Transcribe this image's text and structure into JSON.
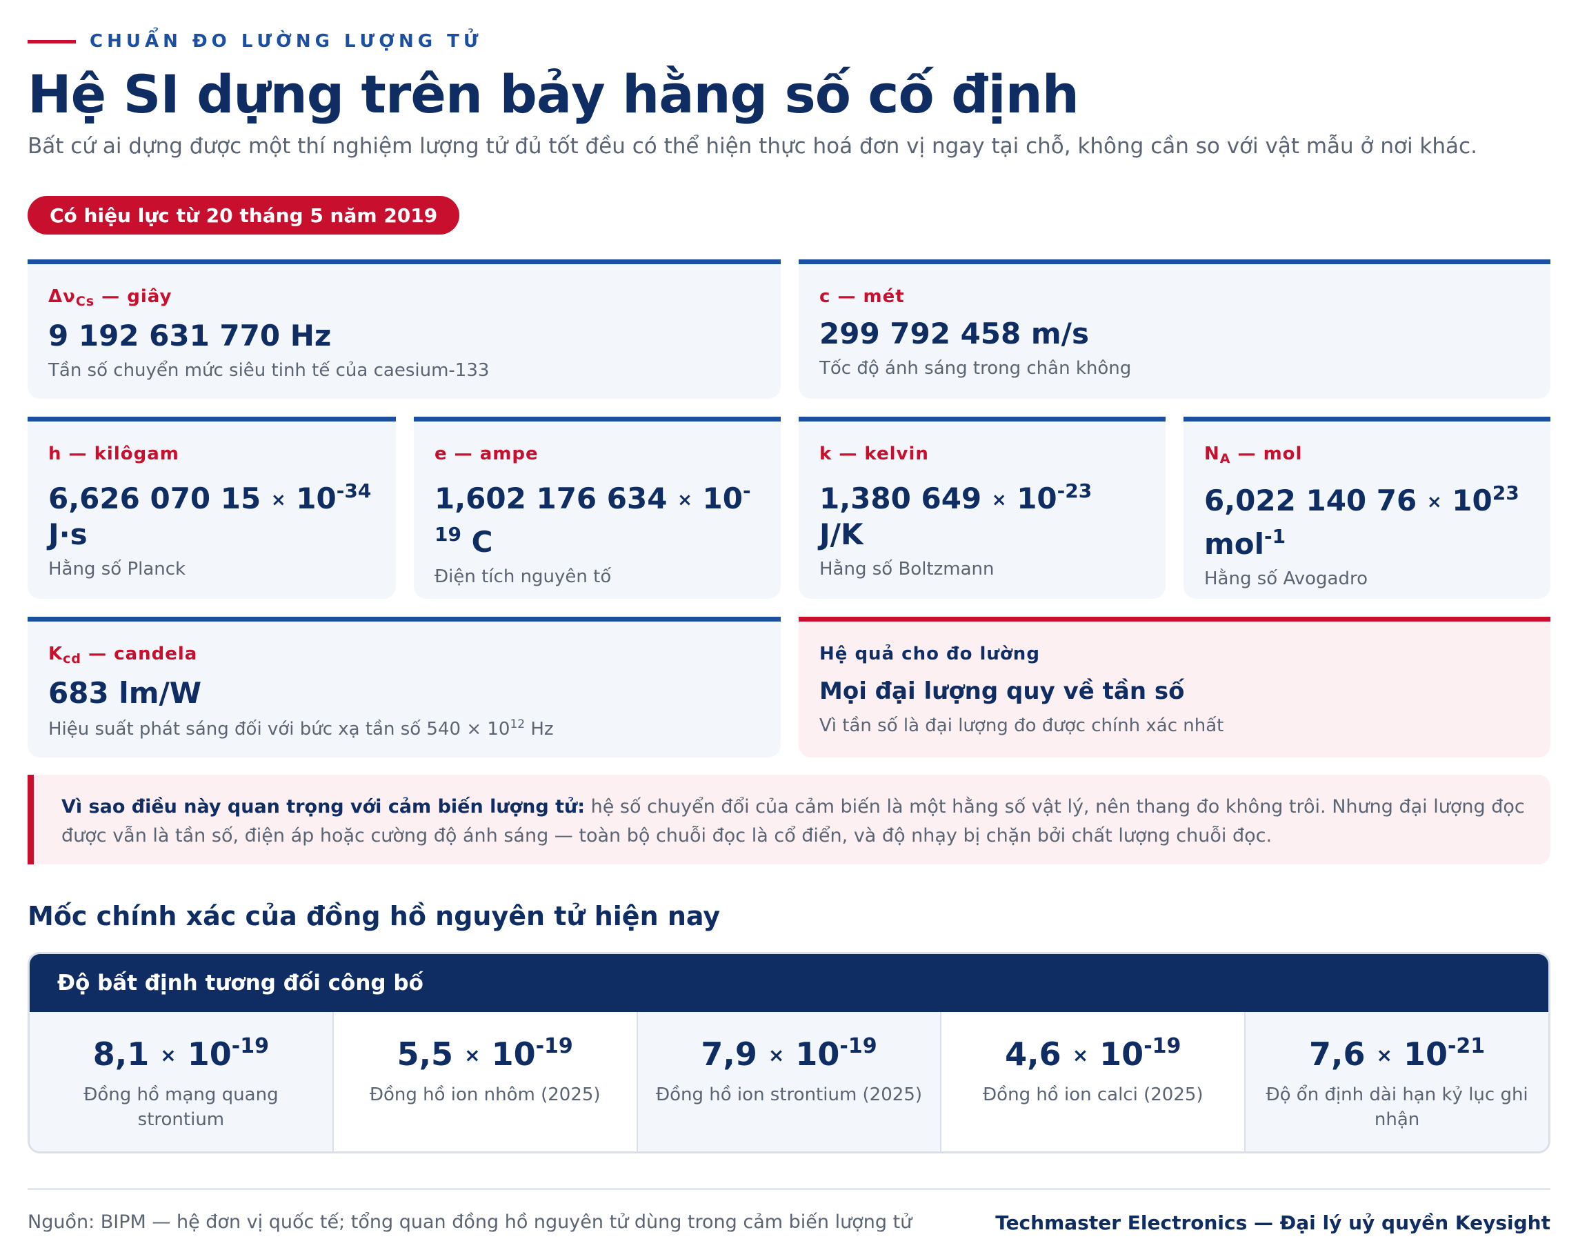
{
  "header": {
    "eyebrow": "CHUẨN ĐO LƯỜNG LƯỢNG TỬ",
    "title": "Hệ SI dựng trên bảy hằng số cố định",
    "subtitle": "Bất cứ ai dựng được một thí nghiệm lượng tử đủ tốt đều có thể hiện thực hoá đơn vị ngay tại chỗ, không cần so với vật mẫu ở nơi khác.",
    "badge": "Có hiệu lực từ 20 tháng 5 năm 2019"
  },
  "constants": {
    "cs": {
      "sym": "Δν",
      "sub": "Cs",
      "unit": " — giây",
      "mant": "9 192 631 770 Hz",
      "desc": "Tần số chuyển mức siêu tinh tế của caesium-133"
    },
    "c": {
      "label": "c — mét",
      "mant": "299 792 458 m/s",
      "desc": "Tốc độ ánh sáng trong chân không"
    },
    "h": {
      "label": "h — kilôgam",
      "mant": "6,626 070 15",
      "exp": "-34",
      "unit": "J·s",
      "desc": "Hằng số Planck"
    },
    "e": {
      "label": "e — ampe",
      "mant": "1,602 176 634",
      "exp": "-19",
      "unit": "C",
      "desc": "Điện tích nguyên tố"
    },
    "k": {
      "label": "k — kelvin",
      "mant": "1,380 649",
      "exp": "-23",
      "unit": "J/K",
      "desc": "Hằng số Boltzmann"
    },
    "na": {
      "sym": "N",
      "sub": "A",
      "unit": " — mol",
      "mant": "6,022 140 76",
      "exp": "23",
      "unit2": "mol",
      "exp2": "-1",
      "desc": "Hằng số Avogadro"
    },
    "kcd": {
      "sym": "K",
      "sub": "cd",
      "unit": " — candela",
      "mant": "683 lm/W",
      "desc": "Hiệu suất phát sáng đối với bức xạ tần số 540 × 10",
      "desc_exp": "12",
      "desc_unit": " Hz"
    }
  },
  "consequence": {
    "label": "Hệ quả cho đo lường",
    "value": "Mọi đại lượng quy về tần số",
    "desc": "Vì tần số là đại lượng đo được chính xác nhất"
  },
  "callout": {
    "bold": "Vì sao điều này quan trọng với cảm biến lượng tử:",
    "text": " hệ số chuyển đổi của cảm biến là một hằng số vật lý, nên thang đo không trôi. Nhưng đại lượng đọc được vẫn là tần số, điện áp hoặc cường độ ánh sáng — toàn bộ chuỗi đọc là cổ điển, và độ nhạy bị chặn bởi chất lượng chuỗi đọc."
  },
  "section_title": "Mốc chính xác của đồng hồ nguyên tử hiện nay",
  "table": {
    "header": "Độ bất định tương đối công bố",
    "times": "×",
    "ten": "10",
    "cells": [
      {
        "mant": "8,1",
        "exp": "-19",
        "label": "Đồng hồ mạng quang strontium"
      },
      {
        "mant": "5,5",
        "exp": "-19",
        "label": "Đồng hồ ion nhôm (2025)"
      },
      {
        "mant": "7,9",
        "exp": "-19",
        "label": "Đồng hồ ion strontium (2025)"
      },
      {
        "mant": "4,6",
        "exp": "-19",
        "label": "Đồng hồ ion calci (2025)"
      },
      {
        "mant": "7,6",
        "exp": "-21",
        "label": "Độ ổn định dài hạn kỷ lục ghi nhận"
      }
    ]
  },
  "footer": {
    "source": "Nguồn: BIPM — hệ đơn vị quốc tế; tổng quan đồng hồ nguyên tử dùng trong cảm biến lượng tử",
    "brand": "Techmaster Electronics — Đại lý uỷ quyền Keysight"
  },
  "colors": {
    "navy": "#0f2d63",
    "blue": "#1c4fa0",
    "red": "#c8102e",
    "card": "#f3f6fb",
    "pink": "#fdf0f2"
  },
  "sci": {
    "times": "×",
    "ten": "10"
  }
}
